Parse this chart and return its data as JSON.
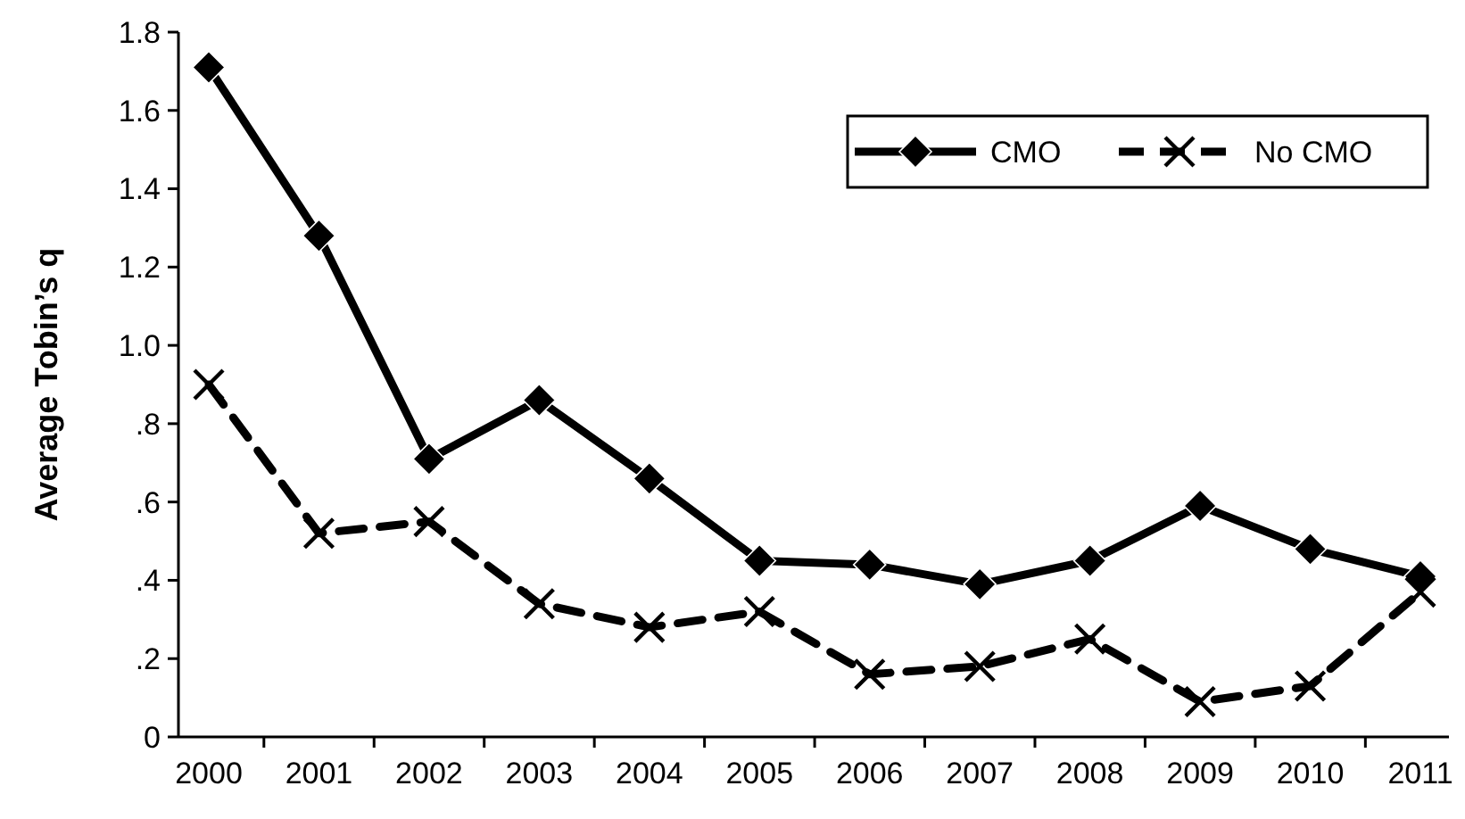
{
  "chart_data": {
    "type": "line",
    "ylabel": "Average Tobin’s q",
    "categories": [
      "2000",
      "2001",
      "2002",
      "2003",
      "2004",
      "2005",
      "2006",
      "2007",
      "2008",
      "2009",
      "2010",
      "2011"
    ],
    "series": [
      {
        "name": "CMO",
        "color": "#000000",
        "marker": "diamond",
        "line_style": "solid",
        "values": [
          1.71,
          1.28,
          0.71,
          0.86,
          0.66,
          0.45,
          0.44,
          0.39,
          0.45,
          0.59,
          0.48,
          0.41
        ]
      },
      {
        "name": "No CMO",
        "color": "#000000",
        "marker": "cross",
        "line_style": "dashed",
        "values": [
          0.9,
          0.52,
          0.55,
          0.34,
          0.28,
          0.32,
          0.16,
          0.18,
          0.25,
          0.09,
          0.13,
          0.37
        ]
      }
    ],
    "ylim": [
      0,
      1.8
    ],
    "yticks": [
      0,
      {
        "value": 0.2,
        "label": ".2"
      },
      {
        "value": 0.4,
        "label": ".4"
      },
      {
        "value": 0.6,
        "label": ".6"
      },
      {
        "value": 0.8,
        "label": ".8"
      },
      {
        "value": 1,
        "label": "1.0"
      },
      1.2,
      1.4,
      1.6,
      1.8
    ],
    "grid": false,
    "legend": "top right"
  }
}
